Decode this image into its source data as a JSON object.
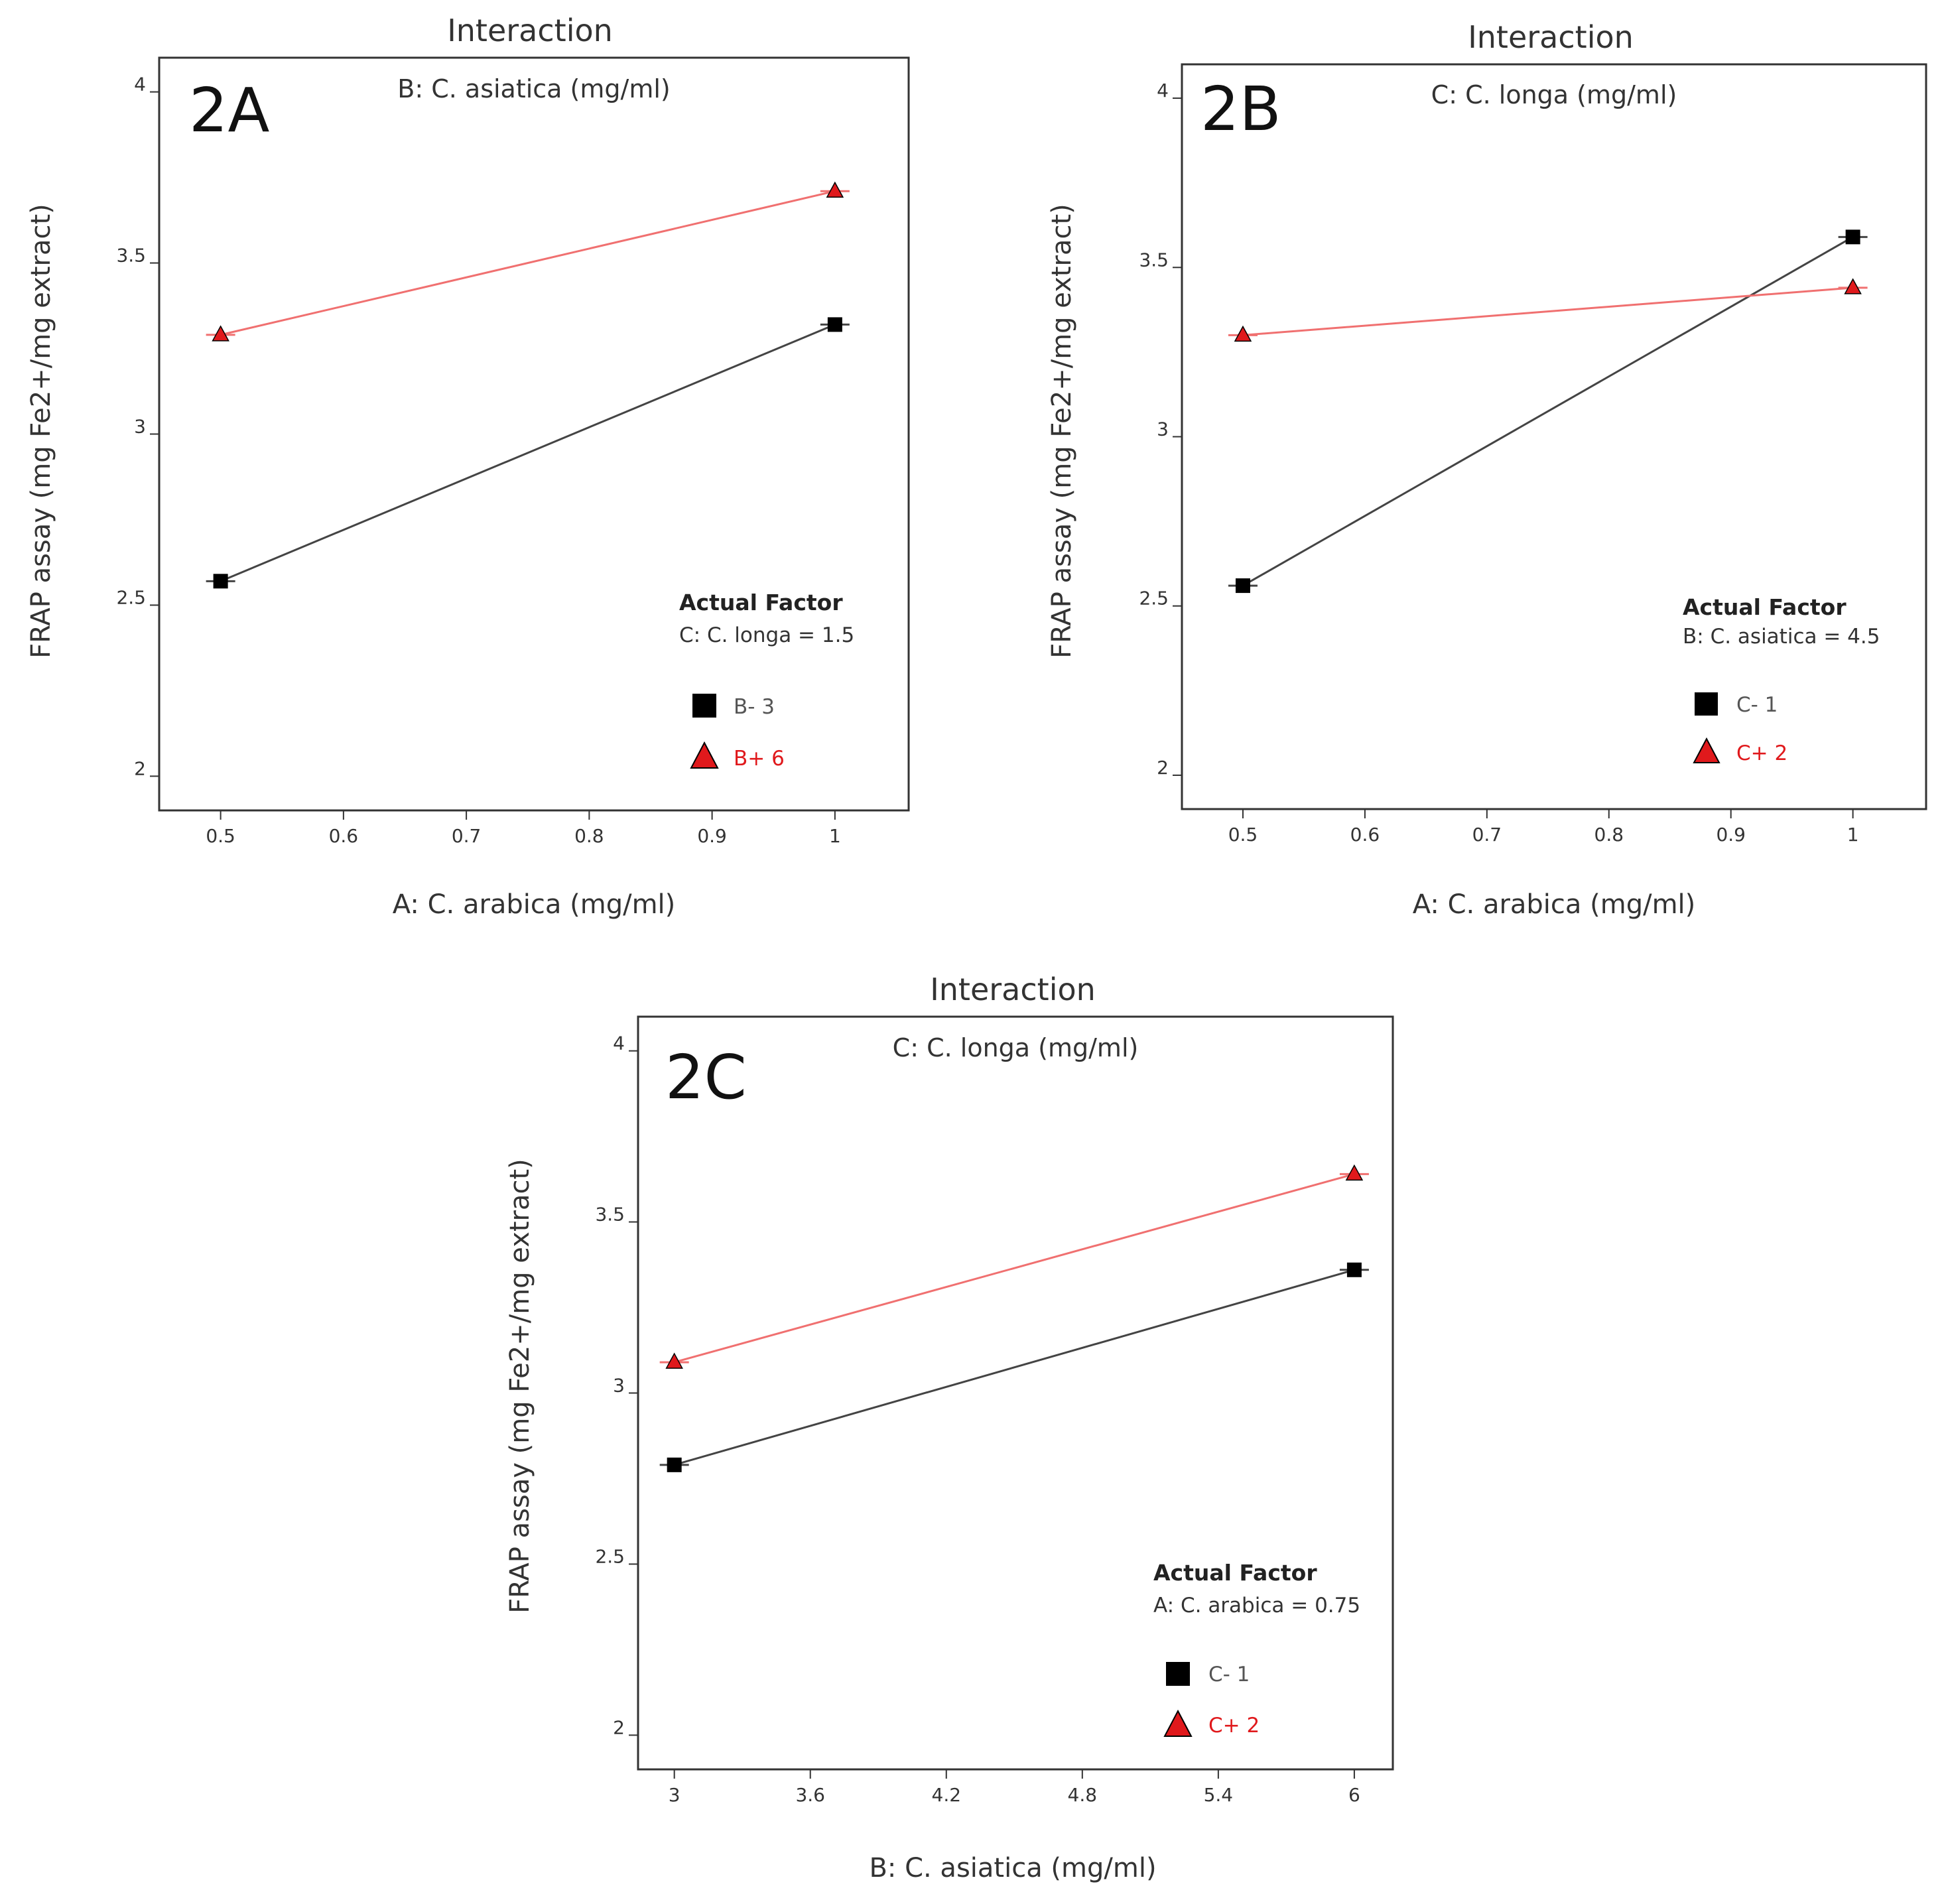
{
  "chart_data": [
    {
      "type": "line",
      "panel_label": "2A",
      "title": "Interaction",
      "subtitle": "B: C. asiatica  (mg/ml)",
      "xlabel": "A: C. arabica (mg/ml)",
      "ylabel": "FRAP assay (mg Fe2+/mg extract)",
      "xlim": [
        0.45,
        1.06
      ],
      "ylim": [
        1.9,
        4.1
      ],
      "xticks": [
        0.5,
        0.6,
        0.7,
        0.8,
        0.9,
        1
      ],
      "xtick_labels": [
        "0.5",
        "0.6",
        "0.7",
        "0.8",
        "0.9",
        "1"
      ],
      "yticks": [
        2,
        2.5,
        3,
        3.5,
        4
      ],
      "ytick_labels": [
        "2",
        "2.5",
        "3",
        "3.5",
        "4"
      ],
      "actual_factor_heading": "Actual Factor",
      "actual_factor": "C: C. longa = 1.5",
      "series": [
        {
          "name": "B- 3",
          "marker": "square",
          "color": "#000000",
          "line_color": "#444444",
          "x": [
            0.5,
            1
          ],
          "y": [
            2.57,
            3.32
          ]
        },
        {
          "name": "B+ 6",
          "marker": "triangle",
          "color": "#e0191c",
          "line_color": "#f07070",
          "x": [
            0.5,
            1
          ],
          "y": [
            3.29,
            3.71
          ]
        }
      ],
      "grid": false
    },
    {
      "type": "line",
      "panel_label": "2B",
      "title": "Interaction",
      "subtitle": "C: C. longa (mg/ml)",
      "xlabel": "A: C. arabica (mg/ml)",
      "ylabel": "FRAP assay (mg Fe2+/mg extract)",
      "xlim": [
        0.45,
        1.06
      ],
      "ylim": [
        1.9,
        4.1
      ],
      "xticks": [
        0.5,
        0.6,
        0.7,
        0.8,
        0.9,
        1
      ],
      "xtick_labels": [
        "0.5",
        "0.6",
        "0.7",
        "0.8",
        "0.9",
        "1"
      ],
      "yticks": [
        2,
        2.5,
        3,
        3.5,
        4
      ],
      "ytick_labels": [
        "2",
        "2.5",
        "3",
        "3.5",
        "4"
      ],
      "actual_factor_heading": "Actual Factor",
      "actual_factor": "B: C. asiatica = 4.5",
      "series": [
        {
          "name": "C- 1",
          "marker": "square",
          "color": "#000000",
          "line_color": "#444444",
          "x": [
            0.5,
            1
          ],
          "y": [
            2.56,
            3.59
          ]
        },
        {
          "name": "C+ 2",
          "marker": "triangle",
          "color": "#e0191c",
          "line_color": "#f07070",
          "x": [
            0.5,
            1
          ],
          "y": [
            3.3,
            3.44
          ]
        }
      ],
      "grid": false
    },
    {
      "type": "line",
      "panel_label": "2C",
      "title": "Interaction",
      "subtitle": "C: C. longa (mg/ml)",
      "xlabel": "B: C. asiatica  (mg/ml)",
      "ylabel": "FRAP assay (mg Fe2+/mg extract)",
      "xlim": [
        2.84,
        6.17
      ],
      "ylim": [
        1.9,
        4.1
      ],
      "xticks": [
        3,
        3.6,
        4.2,
        4.8,
        5.4,
        6
      ],
      "xtick_labels": [
        "3",
        "3.6",
        "4.2",
        "4.8",
        "5.4",
        "6"
      ],
      "yticks": [
        2,
        2.5,
        3,
        3.5,
        4
      ],
      "ytick_labels": [
        "2",
        "2.5",
        "3",
        "3.5",
        "4"
      ],
      "actual_factor_heading": "Actual Factor",
      "actual_factor": "A: C. arabica = 0.75",
      "series": [
        {
          "name": "C- 1",
          "marker": "square",
          "color": "#000000",
          "line_color": "#444444",
          "x": [
            3,
            6
          ],
          "y": [
            2.79,
            3.36
          ]
        },
        {
          "name": "C+ 2",
          "marker": "triangle",
          "color": "#e0191c",
          "line_color": "#f07070",
          "x": [
            3,
            6
          ],
          "y": [
            3.09,
            3.64
          ]
        }
      ],
      "grid": false
    }
  ]
}
